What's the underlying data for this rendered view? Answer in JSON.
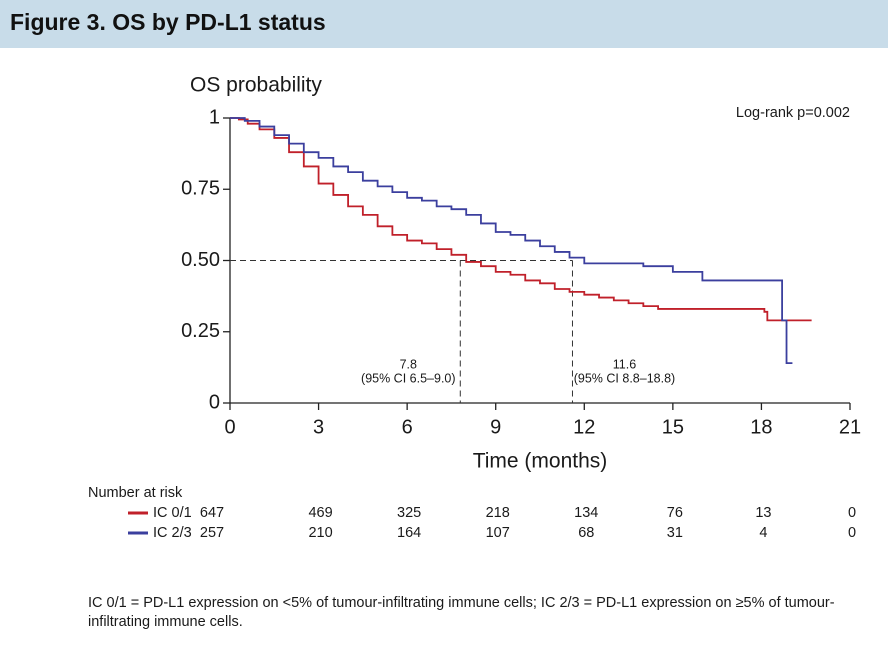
{
  "header": {
    "title": "Figure 3. OS by PD-L1 status"
  },
  "chart_data": {
    "type": "km",
    "ylabel": "OS probability",
    "xlabel": "Time (months)",
    "annotation": "Log-rank p=0.002",
    "xlim": [
      0,
      21
    ],
    "xticks": [
      0,
      3,
      6,
      9,
      12,
      15,
      18,
      21
    ],
    "ylim": [
      0,
      1
    ],
    "yticks": [
      0,
      0.25,
      {
        "value": 0.5,
        "label": "0.50"
      },
      0.75,
      1
    ],
    "reference_y": 0.5,
    "medians": [
      {
        "x": 7.8,
        "ci": "(95% CI 6.5–9.0)"
      },
      {
        "x": 11.6,
        "ci": "(95% CI 8.8–18.8)"
      }
    ],
    "risk_title": "Number at risk",
    "series": [
      {
        "name": "IC 0/1",
        "color": "#c0202a",
        "x": [
          0,
          0.3,
          0.6,
          1,
          1.5,
          2,
          2.5,
          3,
          3.5,
          4,
          4.5,
          5,
          5.5,
          6,
          6.5,
          7,
          7.5,
          8,
          8.5,
          9,
          9.5,
          10,
          10.5,
          11,
          11.5,
          12,
          12.5,
          13,
          13.5,
          14,
          14.5,
          15,
          16,
          17,
          18.1,
          18.2,
          19.7
        ],
        "values": [
          1,
          0.995,
          0.98,
          0.96,
          0.93,
          0.88,
          0.83,
          0.77,
          0.73,
          0.69,
          0.66,
          0.62,
          0.59,
          0.57,
          0.56,
          0.54,
          0.52,
          0.495,
          0.48,
          0.46,
          0.45,
          0.43,
          0.42,
          0.4,
          0.39,
          0.38,
          0.37,
          0.36,
          0.35,
          0.34,
          0.33,
          0.33,
          0.33,
          0.33,
          0.32,
          0.29,
          0.29
        ],
        "at_risk": [
          647,
          469,
          325,
          218,
          134,
          76,
          13,
          0
        ]
      },
      {
        "name": "IC 2/3",
        "color": "#3b3f9e",
        "x": [
          0,
          0.5,
          1,
          1.5,
          2,
          2.5,
          3,
          3.5,
          4,
          4.5,
          5,
          5.5,
          6,
          6.5,
          7,
          7.5,
          8,
          8.5,
          9,
          9.5,
          10,
          10.5,
          11,
          11.5,
          12,
          13,
          14,
          15,
          16,
          17,
          18,
          18.7,
          18.85,
          19.05
        ],
        "values": [
          1,
          0.99,
          0.97,
          0.94,
          0.91,
          0.88,
          0.86,
          0.83,
          0.81,
          0.78,
          0.76,
          0.74,
          0.72,
          0.71,
          0.69,
          0.68,
          0.66,
          0.63,
          0.6,
          0.59,
          0.57,
          0.55,
          0.53,
          0.51,
          0.49,
          0.49,
          0.48,
          0.46,
          0.43,
          0.43,
          0.43,
          0.29,
          0.14,
          0.14
        ],
        "at_risk": [
          257,
          210,
          164,
          107,
          68,
          31,
          4,
          0
        ]
      }
    ]
  },
  "footnote": "IC 0/1 = PD-L1 expression on <5% of tumour-infiltrating immune cells; IC 2/3 = PD-L1 expression on ≥5% of tumour-infiltrating immune cells."
}
